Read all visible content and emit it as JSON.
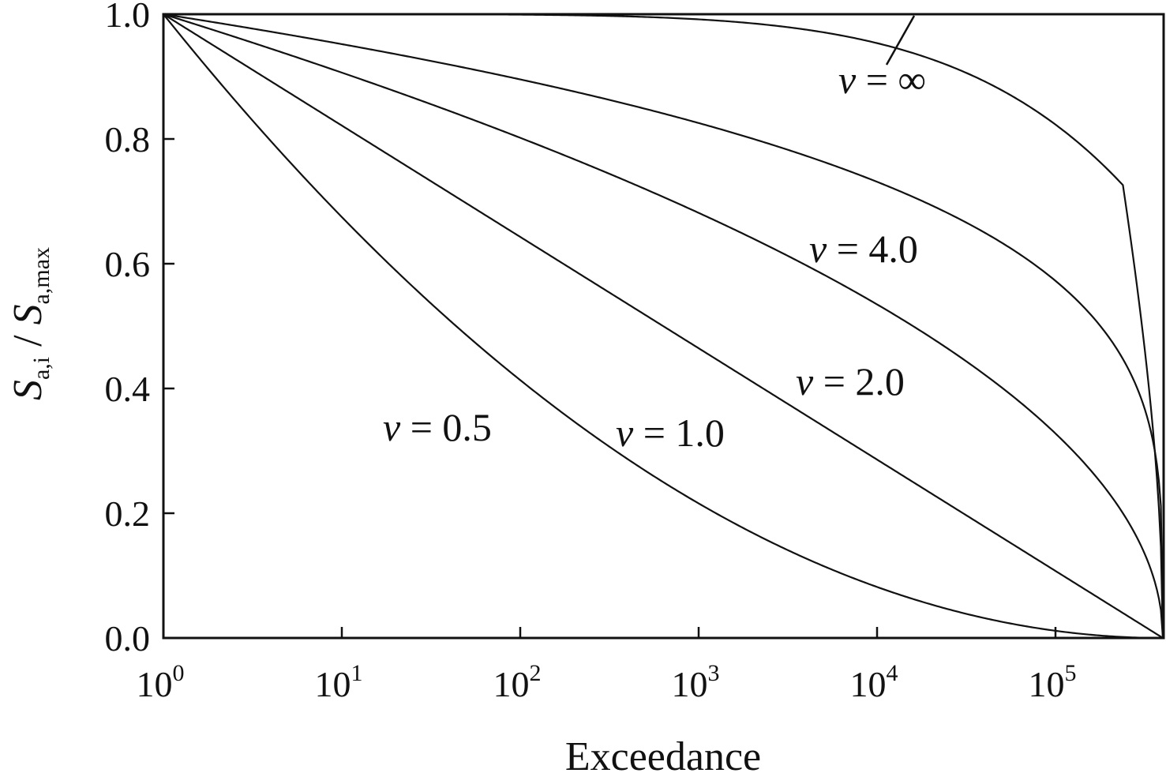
{
  "chart_data": {
    "type": "line",
    "title": "",
    "xlabel": "Exceedance",
    "ylabel": {
      "main1": "S",
      "sub1": "a,i",
      "separator": " / ",
      "main2": "S",
      "sub2": "a,max"
    },
    "x_scale": "log",
    "xlim": [
      1,
      400000
    ],
    "ylim": [
      0.0,
      1.0
    ],
    "grid": false,
    "legend": "none",
    "x_ticks": [
      {
        "base": "10",
        "exp": "0",
        "value": 1
      },
      {
        "base": "10",
        "exp": "1",
        "value": 10
      },
      {
        "base": "10",
        "exp": "2",
        "value": 100
      },
      {
        "base": "10",
        "exp": "3",
        "value": 1000
      },
      {
        "base": "10",
        "exp": "4",
        "value": 10000
      },
      {
        "base": "10",
        "exp": "5",
        "value": 100000
      }
    ],
    "y_ticks": [
      "0.0",
      "0.2",
      "0.4",
      "0.6",
      "0.8",
      "1.0"
    ],
    "y_tick_values": [
      0.0,
      0.2,
      0.4,
      0.6,
      0.8,
      1.0
    ],
    "H0": 400000,
    "series": [
      {
        "nu": 0.5
      },
      {
        "nu": 1.0
      },
      {
        "nu": 2.0
      },
      {
        "nu": 4.0
      },
      {
        "nu": "inf"
      }
    ],
    "annotations": [
      {
        "nu": "ν",
        "rest": " = 0.5"
      },
      {
        "nu": "ν",
        "rest": " = 1.0"
      },
      {
        "nu": "ν",
        "rest": " = 2.0"
      },
      {
        "nu": "ν",
        "rest": " = 4.0"
      },
      {
        "nu": "ν",
        "rest": " = ∞"
      }
    ]
  }
}
